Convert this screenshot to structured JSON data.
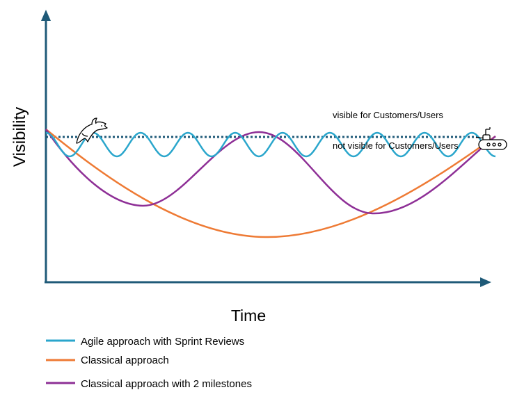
{
  "axes": {
    "y_label": "Visibility",
    "x_label": "Time",
    "axis_color": "#1f5a78"
  },
  "threshold": {
    "above_label": "visible for Customers/Users",
    "below_label": "not visible for Customers/Users",
    "color": "#1f5a78"
  },
  "icons": {
    "start": "dolphin-icon",
    "end": "submarine-icon"
  },
  "legend": [
    {
      "label": "Agile approach with Sprint Reviews",
      "color": "#2aa6cc"
    },
    {
      "label": "Classical approach",
      "color": "#ee7a34"
    },
    {
      "label": "Classical approach with 2 milestones",
      "color": "#8e2f96"
    }
  ]
}
